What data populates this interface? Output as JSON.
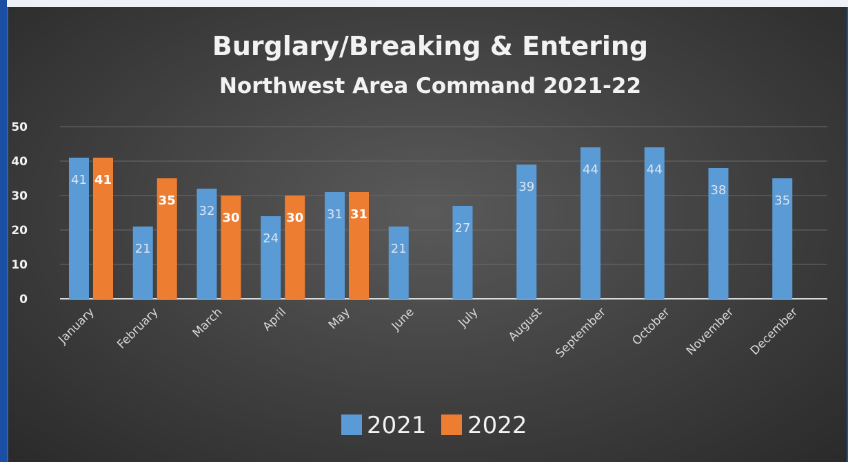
{
  "chart_data": {
    "type": "bar",
    "title": "Burglary/Breaking & Entering",
    "subtitle": "Northwest Area Command 2021-22",
    "categories": [
      "January",
      "February",
      "March",
      "April",
      "May",
      "June",
      "July",
      "August",
      "September",
      "October",
      "November",
      "December"
    ],
    "series": [
      {
        "name": "2021",
        "color": "#5b9bd5",
        "values": [
          41,
          21,
          32,
          24,
          31,
          21,
          27,
          39,
          44,
          44,
          38,
          35
        ]
      },
      {
        "name": "2022",
        "color": "#ed7d31",
        "values": [
          41,
          35,
          30,
          30,
          31,
          null,
          null,
          null,
          null,
          null,
          null,
          null
        ]
      }
    ],
    "ylim": [
      0,
      50
    ],
    "yticks": [
      0,
      10,
      20,
      30,
      40,
      50
    ],
    "grid": true,
    "legend": "bottom"
  }
}
